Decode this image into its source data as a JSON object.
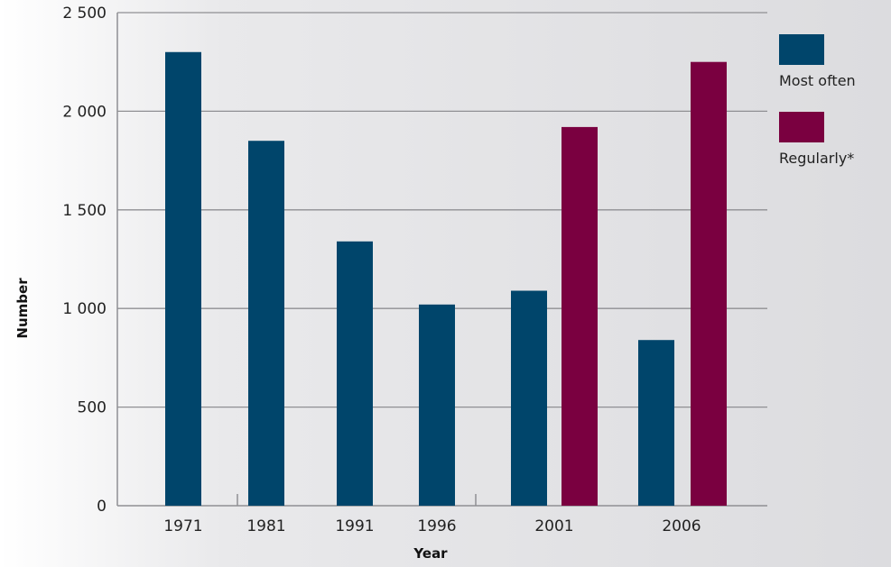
{
  "chart_data": {
    "type": "bar",
    "title": "",
    "xlabel": "Year",
    "ylabel": "Number",
    "ylim": [
      0,
      2500
    ],
    "yticks": [
      0,
      500,
      1000,
      1500,
      2000,
      2500
    ],
    "ytick_labels": [
      "0",
      "500",
      "1 000",
      "1 500",
      "2 000",
      "2 500"
    ],
    "categories": [
      "1971",
      "1981",
      "1991",
      "1996",
      "2001",
      "2006"
    ],
    "series": [
      {
        "name": "Most often",
        "color": "#00456b",
        "values": [
          2300,
          1850,
          1340,
          1020,
          1090,
          840
        ]
      },
      {
        "name": "Regularly*",
        "color": "#7a0040",
        "values": [
          null,
          null,
          null,
          null,
          1920,
          2250
        ]
      }
    ],
    "grid": true,
    "legend_position": "right"
  }
}
